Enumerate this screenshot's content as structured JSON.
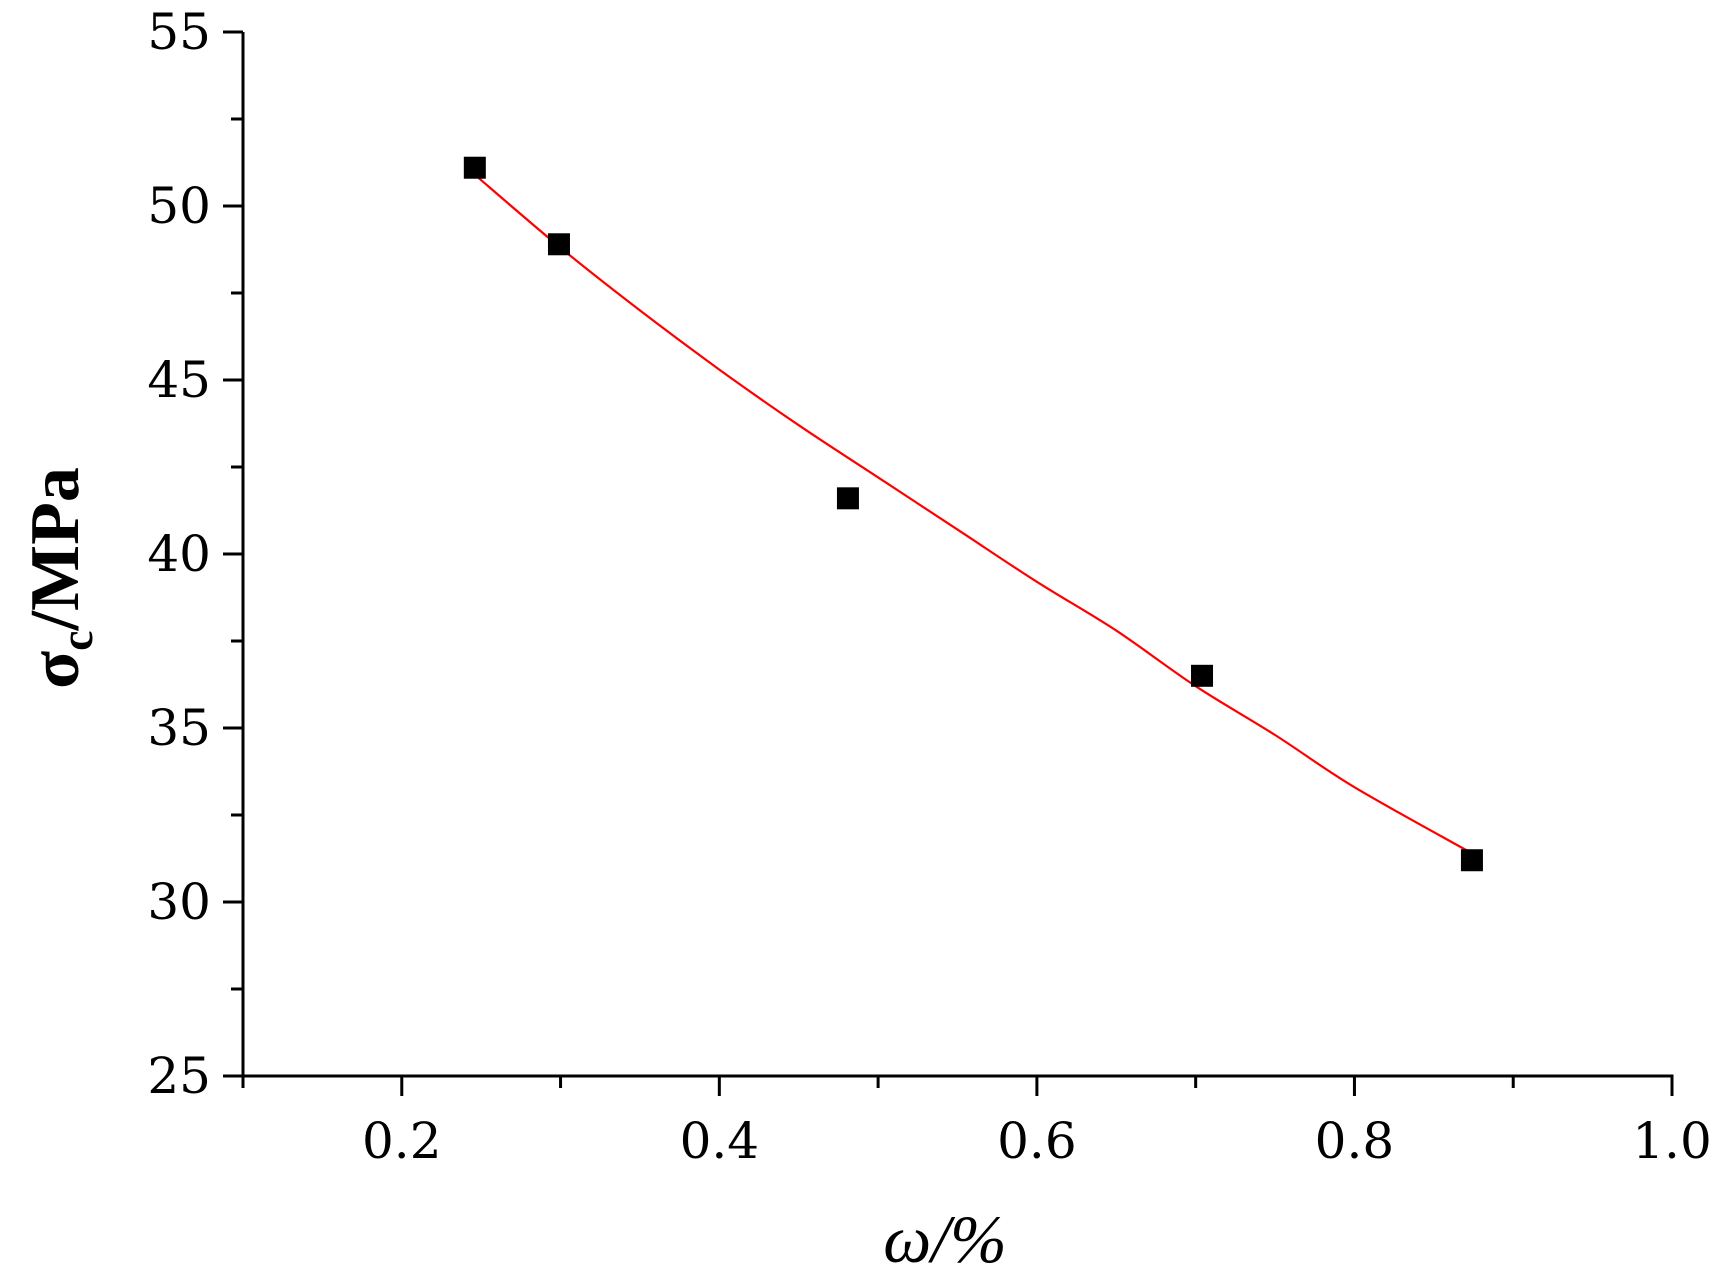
{
  "chart_data": {
    "type": "scatter",
    "xlabel": "ω/%",
    "ylabel_main": "σ",
    "ylabel_sub": "c",
    "ylabel_unit": "/MPa",
    "xlim": [
      0.1,
      1.0
    ],
    "ylim": [
      25,
      55
    ],
    "x_ticks": [
      0.2,
      0.4,
      0.6,
      0.8,
      1.0
    ],
    "x_tick_labels": [
      "0.2",
      "0.4",
      "0.6",
      "0.8",
      "1.0"
    ],
    "y_ticks": [
      25,
      30,
      35,
      40,
      45,
      50,
      55
    ],
    "y_tick_labels": [
      "25",
      "30",
      "35",
      "40",
      "45",
      "50",
      "55"
    ],
    "grid": false,
    "series": [
      {
        "kind": "points",
        "marker": "square",
        "color": "#000000",
        "x": [
          0.246,
          0.299,
          0.481,
          0.704,
          0.874
        ],
        "y": [
          51.1,
          48.9,
          41.6,
          36.5,
          31.2
        ]
      },
      {
        "kind": "fit-line",
        "color": "#ff0000",
        "x": [
          0.246,
          0.3,
          0.35,
          0.4,
          0.45,
          0.5,
          0.55,
          0.6,
          0.65,
          0.7,
          0.75,
          0.8,
          0.874
        ],
        "y": [
          50.9,
          48.8,
          47.0,
          45.3,
          43.7,
          42.2,
          40.7,
          39.2,
          37.8,
          36.2,
          34.8,
          33.3,
          31.4
        ]
      }
    ]
  }
}
